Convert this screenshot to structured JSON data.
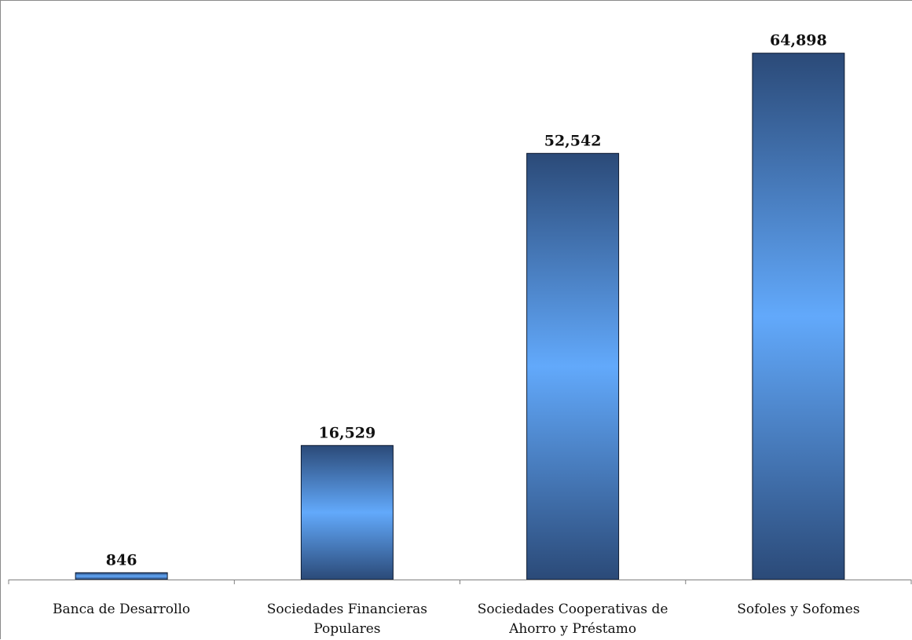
{
  "chart_data": {
    "type": "bar",
    "categories": [
      [
        "Banca de Desarrollo"
      ],
      [
        "Sociedades Financieras",
        "Populares"
      ],
      [
        "Sociedades Cooperativas de",
        "Ahorro y Préstamo"
      ],
      [
        "Sofoles y Sofomes"
      ]
    ],
    "values": [
      846,
      16529,
      52542,
      64898
    ],
    "value_labels": [
      "846",
      "16,529",
      "52,542",
      "64,898"
    ],
    "title": "",
    "xlabel": "",
    "ylabel": "",
    "ylim": [
      0,
      70000
    ],
    "grid": false,
    "legend": "none",
    "colors": {
      "bar_dark": "#2b4a78",
      "bar_light": "#62a9fb",
      "axis": "#7f7f7f"
    }
  }
}
